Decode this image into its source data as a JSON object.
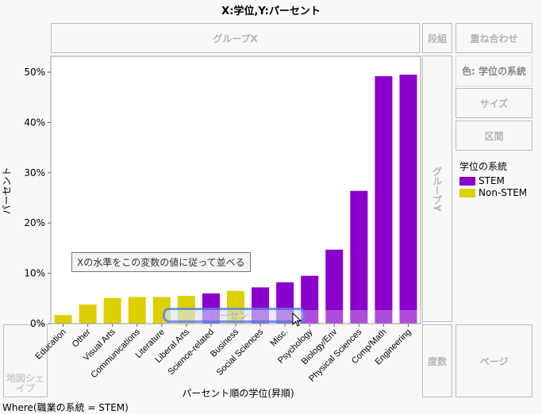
{
  "title": "X:学位,Y:パーセント",
  "zones": {
    "group_x": "グループX",
    "wrap": "段組",
    "overlay": "重ね合わせ",
    "color": "色: 学位の系統",
    "size": "サイズ",
    "interval": "区間",
    "group_y": "グループY",
    "freq": "度数",
    "page": "ページ",
    "map_shape": "地図シェイプ"
  },
  "legend": {
    "title": "学位の系統",
    "items": [
      {
        "label": "STEM",
        "color": "#8b00cc"
      },
      {
        "label": "Non-STEM",
        "color": "#dcd000"
      }
    ]
  },
  "drop_zone_label": "パーセント",
  "tooltip": "Xの水準をこの変数の値に従って並べる",
  "where": "Where(職業の系統 = STEM)",
  "chart_data": {
    "type": "bar",
    "xlabel": "パーセント順の学位(昇順)",
    "ylabel": "パーセント",
    "ylim": [
      0,
      53
    ],
    "yticks": [
      "0%",
      "10%",
      "20%",
      "30%",
      "40%",
      "50%"
    ],
    "categories": [
      "Education",
      "Other",
      "Visual Arts",
      "Communications",
      "Literature",
      "Liberal Arts",
      "Science-related",
      "Business",
      "Social Sciences",
      "Misc.",
      "Psychology",
      "Biology/Env",
      "Physical Sciences",
      "Comp/Math",
      "Engineering"
    ],
    "values": [
      1.7,
      3.8,
      5.1,
      5.3,
      5.3,
      5.5,
      6.0,
      6.5,
      7.2,
      8.2,
      9.5,
      14.7,
      26.4,
      49.2,
      49.5
    ],
    "groups": [
      "Non-STEM",
      "Non-STEM",
      "Non-STEM",
      "Non-STEM",
      "Non-STEM",
      "Non-STEM",
      "STEM",
      "Non-STEM",
      "STEM",
      "STEM",
      "STEM",
      "STEM",
      "STEM",
      "STEM",
      "STEM"
    ]
  }
}
